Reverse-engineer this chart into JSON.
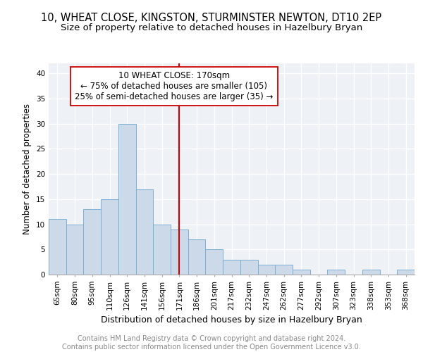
{
  "title": "10, WHEAT CLOSE, KINGSTON, STURMINSTER NEWTON, DT10 2EP",
  "subtitle": "Size of property relative to detached houses in Hazelbury Bryan",
  "xlabel": "Distribution of detached houses by size in Hazelbury Bryan",
  "ylabel": "Number of detached properties",
  "categories": [
    "65sqm",
    "80sqm",
    "95sqm",
    "110sqm",
    "126sqm",
    "141sqm",
    "156sqm",
    "171sqm",
    "186sqm",
    "201sqm",
    "217sqm",
    "232sqm",
    "247sqm",
    "262sqm",
    "277sqm",
    "292sqm",
    "307sqm",
    "323sqm",
    "338sqm",
    "353sqm",
    "368sqm"
  ],
  "values": [
    11,
    10,
    13,
    15,
    30,
    17,
    10,
    9,
    7,
    5,
    3,
    3,
    2,
    2,
    1,
    0,
    1,
    0,
    1,
    0,
    1
  ],
  "bar_color": "#ccd9e8",
  "bar_edge_color": "#7aafd4",
  "vline_x_index": 7,
  "vline_color": "#cc0000",
  "annotation_line1": "10 WHEAT CLOSE: 170sqm",
  "annotation_line2": "← 75% of detached houses are smaller (105)",
  "annotation_line3": "25% of semi-detached houses are larger (35) →",
  "annotation_box_color": "#ffffff",
  "annotation_box_edge_color": "#cc0000",
  "ylim": [
    0,
    42
  ],
  "yticks": [
    0,
    5,
    10,
    15,
    20,
    25,
    30,
    35,
    40
  ],
  "bg_color": "#eef2f7",
  "plot_bg_color": "#eef2f7",
  "footer_text": "Contains HM Land Registry data © Crown copyright and database right 2024.\nContains public sector information licensed under the Open Government Licence v3.0.",
  "title_fontsize": 10.5,
  "subtitle_fontsize": 9.5,
  "xlabel_fontsize": 9,
  "ylabel_fontsize": 8.5,
  "tick_fontsize": 7.5,
  "annotation_fontsize": 8.5,
  "footer_fontsize": 7
}
